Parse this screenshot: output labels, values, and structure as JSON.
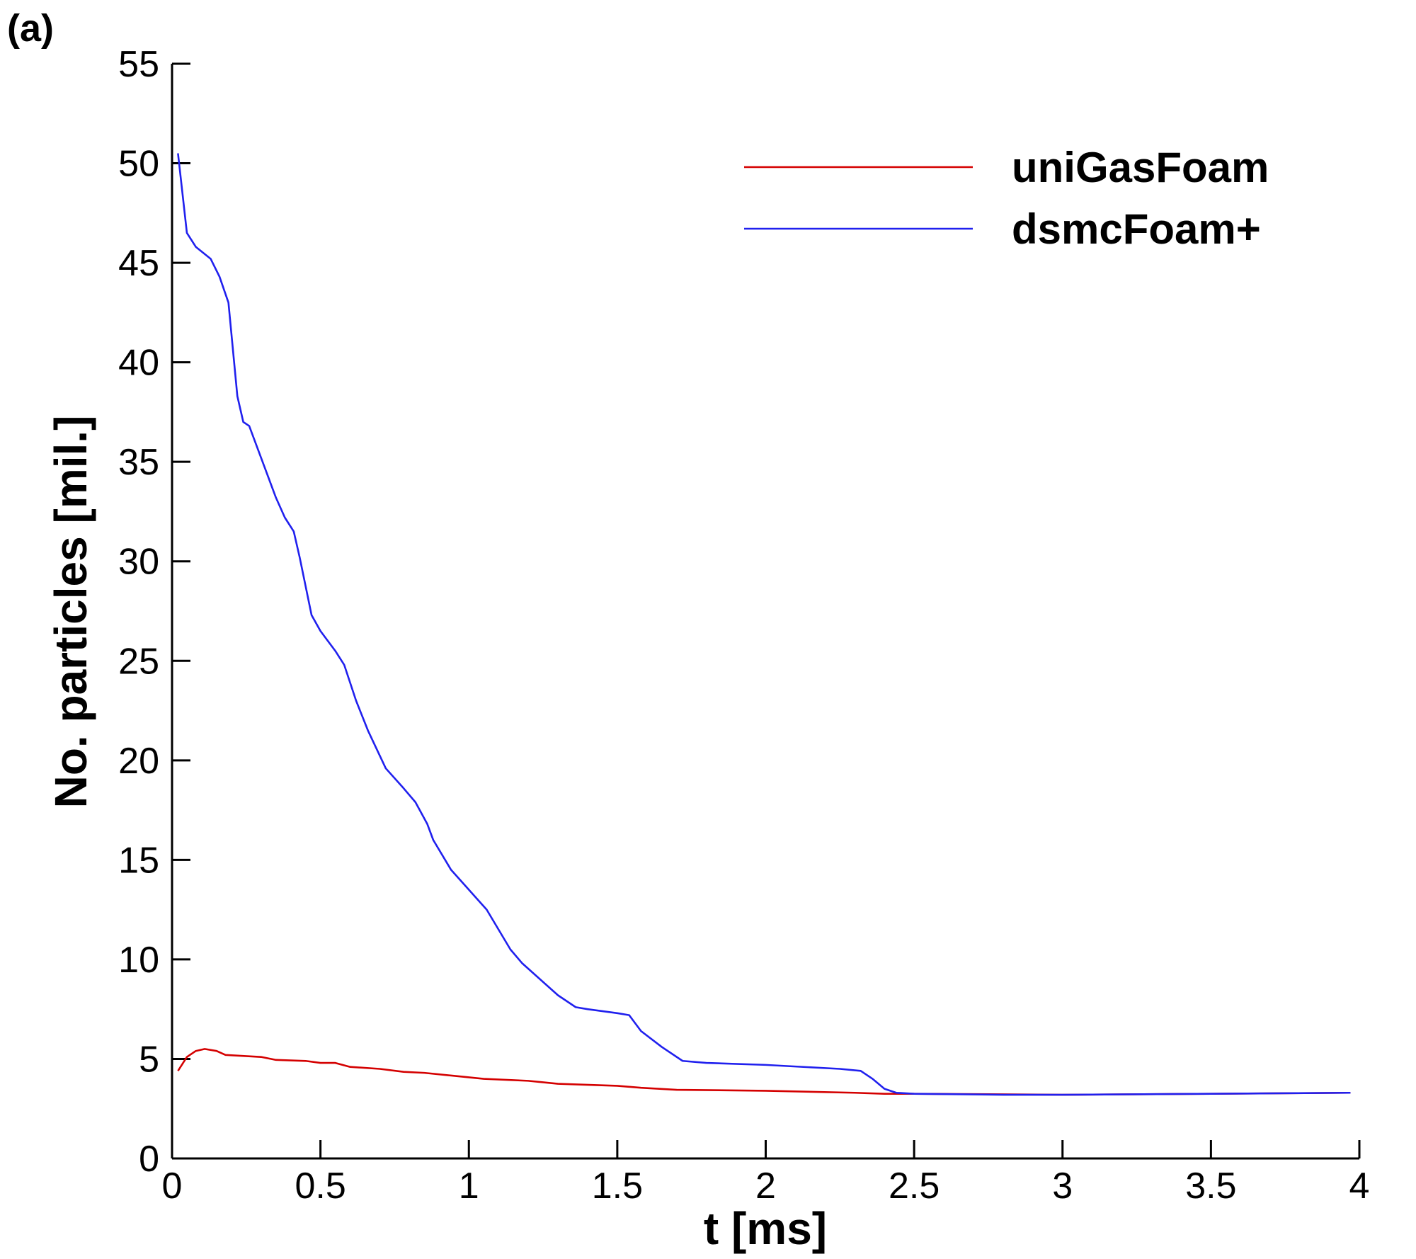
{
  "chart_data": {
    "type": "line",
    "panel_label": "(a)",
    "x_label": "t [ms]",
    "y_label": "No. particles [mil.]",
    "xlim": [
      0,
      4
    ],
    "xticks": [
      0,
      0.5,
      1,
      1.5,
      2,
      2.5,
      3,
      3.5,
      4
    ],
    "ylim": [
      0,
      55
    ],
    "yticks": [
      0,
      5,
      10,
      15,
      20,
      25,
      30,
      35,
      40,
      45,
      50,
      55
    ],
    "legend": "upper right",
    "series": [
      {
        "name": "uniGasFoam",
        "color": "#d40000",
        "x": [
          0.02,
          0.05,
          0.08,
          0.11,
          0.15,
          0.18,
          0.3,
          0.35,
          0.45,
          0.5,
          0.55,
          0.6,
          0.7,
          0.78,
          0.85,
          0.95,
          1.05,
          1.2,
          1.3,
          1.5,
          1.58,
          1.7,
          2.0,
          2.3,
          2.4,
          2.5,
          3.0,
          3.5,
          3.97
        ],
        "values": [
          4.4,
          5.1,
          5.4,
          5.5,
          5.4,
          5.2,
          5.1,
          4.95,
          4.9,
          4.8,
          4.8,
          4.6,
          4.5,
          4.35,
          4.3,
          4.15,
          4.0,
          3.9,
          3.75,
          3.65,
          3.55,
          3.45,
          3.4,
          3.3,
          3.25,
          3.25,
          3.2,
          3.25,
          3.3
        ]
      },
      {
        "name": "dsmcFoam+",
        "color": "#2020ee",
        "x": [
          0.02,
          0.05,
          0.08,
          0.13,
          0.16,
          0.19,
          0.22,
          0.24,
          0.26,
          0.3,
          0.35,
          0.38,
          0.41,
          0.43,
          0.47,
          0.5,
          0.55,
          0.58,
          0.62,
          0.66,
          0.72,
          0.78,
          0.82,
          0.86,
          0.88,
          0.94,
          1.0,
          1.06,
          1.1,
          1.14,
          1.18,
          1.3,
          1.36,
          1.4,
          1.5,
          1.54,
          1.58,
          1.65,
          1.72,
          1.8,
          2.0,
          2.25,
          2.32,
          2.36,
          2.4,
          2.44,
          2.5,
          2.8,
          3.0,
          3.5,
          3.97
        ],
        "values": [
          50.5,
          46.5,
          45.8,
          45.2,
          44.3,
          43,
          38.3,
          37,
          36.8,
          35.2,
          33.2,
          32.2,
          31.5,
          30.2,
          27.3,
          26.5,
          25.5,
          24.8,
          23.0,
          21.5,
          19.6,
          18.6,
          17.9,
          16.8,
          16,
          14.5,
          13.5,
          12.5,
          11.5,
          10.5,
          9.8,
          8.2,
          7.6,
          7.5,
          7.3,
          7.2,
          6.4,
          5.6,
          4.9,
          4.8,
          4.7,
          4.5,
          4.4,
          4.0,
          3.5,
          3.3,
          3.25,
          3.2,
          3.2,
          3.25,
          3.3
        ]
      }
    ]
  }
}
